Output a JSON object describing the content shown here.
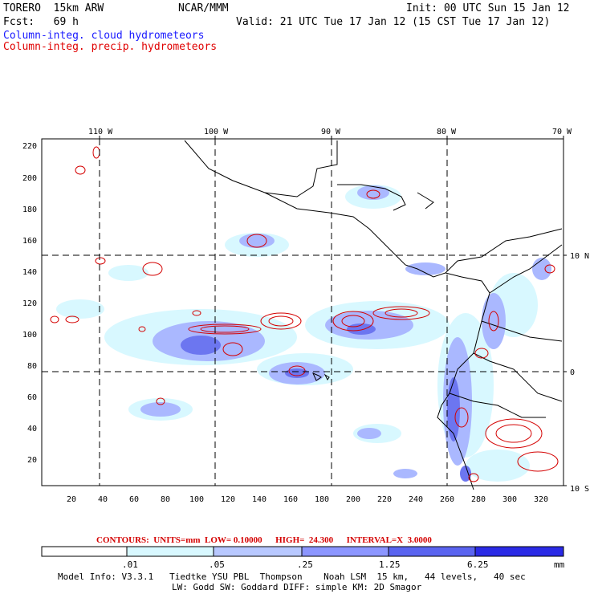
{
  "header": {
    "model": "TORERO  15km ARW",
    "center": "NCAR/MMM",
    "init": "Init: 00 UTC Sun 15 Jan 12",
    "fcst": "Fcst:   69 h",
    "valid": "Valid: 21 UTC Tue 17 Jan 12 (15 CST Tue 17 Jan 12)",
    "field1": "Column-integ. cloud hydrometeors",
    "field2": "Column-integ. precip. hydrometeors"
  },
  "axes": {
    "lon_labels": [
      "110 W",
      "100 W",
      "90 W",
      "80 W",
      "70 W"
    ],
    "lat_labels": [
      "10 N",
      "0",
      "10 S"
    ],
    "y_ticks": [
      "220",
      "200",
      "180",
      "160",
      "140",
      "120",
      "100",
      "80",
      "60",
      "40",
      "20"
    ],
    "x_ticks": [
      "20",
      "40",
      "60",
      "80",
      "100",
      "120",
      "140",
      "160",
      "180",
      "200",
      "220",
      "240",
      "260",
      "280",
      "300",
      "320"
    ]
  },
  "contour_info": "CONTOURS:  UNITS=mm  LOW= 0.10000      HIGH=  24.300      INTERVAL=X  3.0000",
  "colorbar": {
    "labels": [
      ".01",
      ".05",
      ".25",
      "1.25",
      "6.25",
      "mm"
    ],
    "colors": [
      "#ffffff",
      "#d8f8ff",
      "#b8c8ff",
      "#8c96ff",
      "#5a64f0",
      "#3c3cdc",
      "#1e1ee6"
    ]
  },
  "footer": {
    "line1": "Model Info: V3.3.1   Tiedtke YSU PBL  Thompson    Noah LSM  15 km,   44 levels,   40 sec",
    "line2": "LW: Godd SW: Goddard DIFF: simple KM: 2D Smagor"
  }
}
